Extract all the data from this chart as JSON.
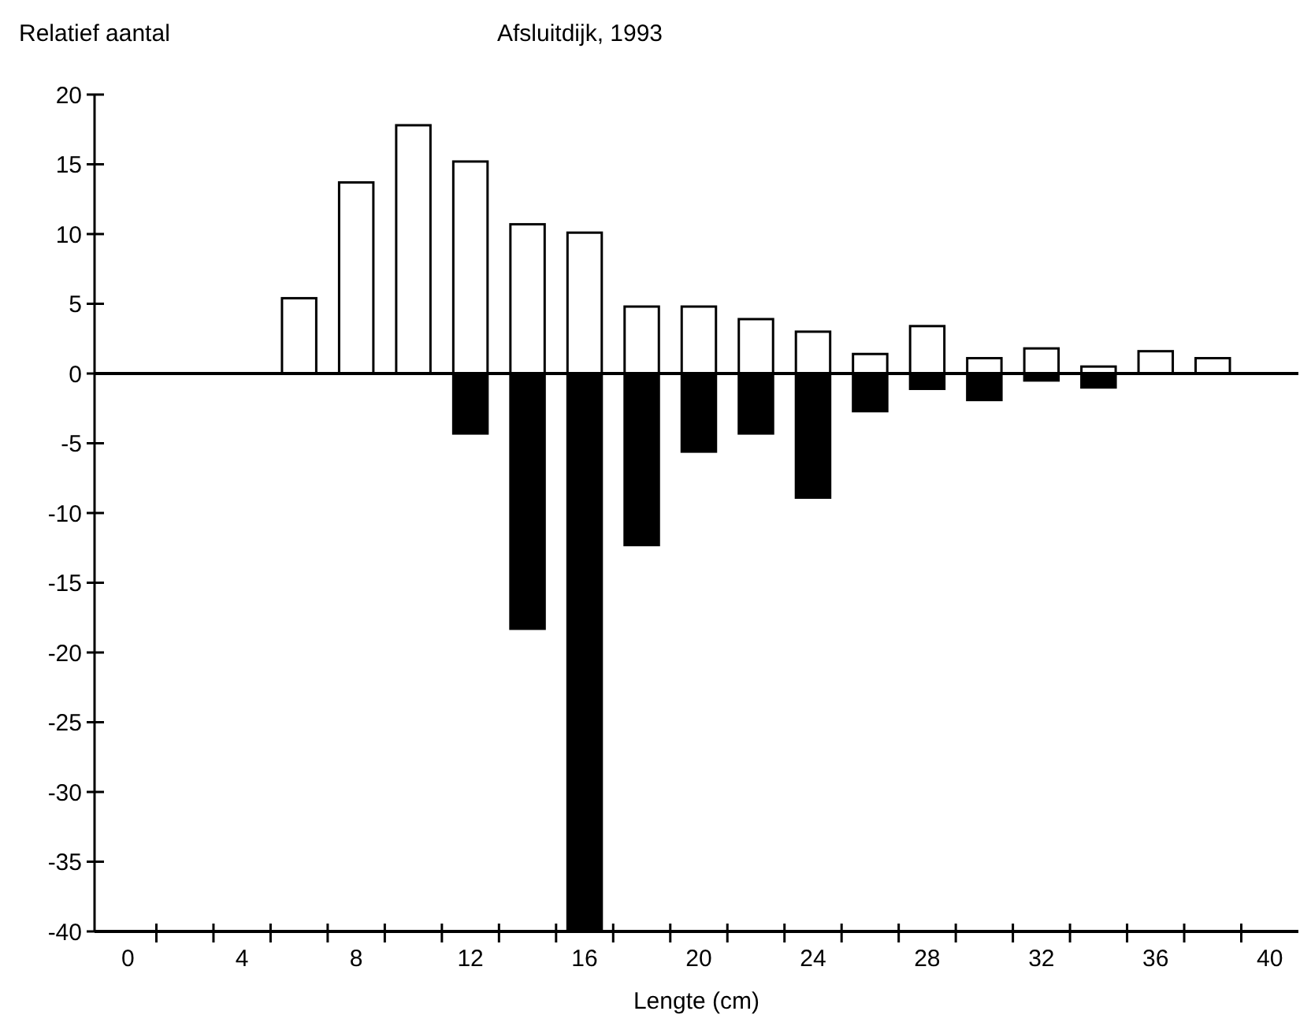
{
  "chart_data": {
    "type": "bar",
    "title": "Afsluitdijk, 1993",
    "xlabel": "Lengte (cm)",
    "ylabel": "Relatief aantal",
    "categories": [
      "0",
      null,
      "4",
      null,
      "8",
      null,
      "12",
      null,
      "16",
      null,
      "20",
      null,
      "24",
      null,
      "28",
      null,
      "32",
      null,
      "36",
      null,
      "40"
    ],
    "series": [
      {
        "color": "#ffffff",
        "values": [
          null,
          null,
          null,
          5.4,
          13.7,
          17.8,
          15.2,
          10.7,
          10.1,
          4.8,
          4.8,
          3.9,
          3.0,
          1.4,
          3.4,
          1.1,
          1.8,
          0.5,
          1.6,
          1.1,
          null
        ]
      },
      {
        "color": "#000000",
        "values": [
          null,
          null,
          null,
          null,
          null,
          null,
          -4.3,
          -18.3,
          -40,
          -12.3,
          -5.6,
          -4.3,
          -8.9,
          -2.7,
          -1.1,
          -1.9,
          -0.5,
          -1.0,
          null,
          null,
          null
        ]
      }
    ],
    "ylim": [
      -40,
      20
    ],
    "yticks": [
      20,
      15,
      10,
      5,
      0,
      -5,
      -10,
      -15,
      -20,
      -25,
      -30,
      -35,
      -40
    ],
    "stacked": true
  }
}
